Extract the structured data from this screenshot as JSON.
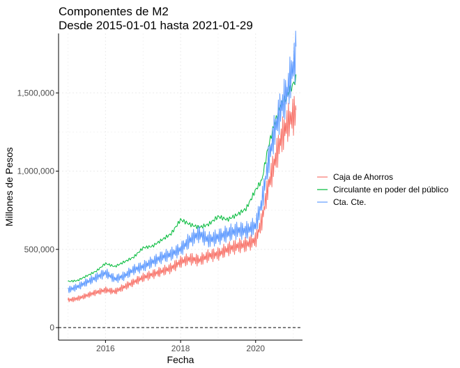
{
  "chart_data": {
    "type": "line",
    "title": "Componentes de M2",
    "subtitle": "Desde 2015-01-01 hasta 2021-01-29",
    "xlabel": "Fecha",
    "ylabel": "Millones de Pesos",
    "x_ticks": [
      "2016",
      "2018",
      "2020"
    ],
    "y_ticks": [
      "0",
      "500,000",
      "1,000,000",
      "1,500,000"
    ],
    "xlim": [
      "2014-10-01",
      "2021-04-01"
    ],
    "ylim": [
      -80000,
      1880000
    ],
    "grid": true,
    "legend_position": "right",
    "reference_line": {
      "y": 0,
      "style": "dashed"
    },
    "series": [
      {
        "name": "Caja de Ahorros",
        "color": "#F8766D",
        "x": [
          "2015-01-01",
          "2015-04-01",
          "2015-07-01",
          "2015-10-01",
          "2016-01-01",
          "2016-04-01",
          "2016-07-01",
          "2016-10-01",
          "2017-01-01",
          "2017-04-01",
          "2017-07-01",
          "2017-10-01",
          "2018-01-01",
          "2018-04-01",
          "2018-07-01",
          "2018-10-01",
          "2019-01-01",
          "2019-04-01",
          "2019-07-01",
          "2019-10-01",
          "2020-01-01",
          "2020-03-01",
          "2020-05-01",
          "2020-07-01",
          "2020-09-01",
          "2020-11-01",
          "2021-01-29"
        ],
        "y": [
          175000,
          185000,
          205000,
          225000,
          240000,
          230000,
          260000,
          290000,
          320000,
          340000,
          360000,
          380000,
          420000,
          440000,
          430000,
          460000,
          470000,
          500000,
          520000,
          530000,
          560000,
          680000,
          900000,
          1050000,
          1200000,
          1300000,
          1380000
        ]
      },
      {
        "name": "Circulante en poder del público",
        "color": "#00BA38",
        "x": [
          "2015-01-01",
          "2015-04-01",
          "2015-07-01",
          "2015-10-01",
          "2016-01-01",
          "2016-04-01",
          "2016-07-01",
          "2016-10-01",
          "2017-01-01",
          "2017-04-01",
          "2017-07-01",
          "2017-10-01",
          "2018-01-01",
          "2018-04-01",
          "2018-07-01",
          "2018-10-01",
          "2019-01-01",
          "2019-04-01",
          "2019-07-01",
          "2019-10-01",
          "2020-01-01",
          "2020-03-01",
          "2020-05-01",
          "2020-07-01",
          "2020-09-01",
          "2020-11-01",
          "2021-01-29"
        ],
        "y": [
          295000,
          300000,
          330000,
          360000,
          410000,
          390000,
          420000,
          450000,
          510000,
          520000,
          560000,
          600000,
          690000,
          660000,
          640000,
          660000,
          710000,
          690000,
          720000,
          760000,
          880000,
          940000,
          1150000,
          1300000,
          1420000,
          1480000,
          1590000
        ]
      },
      {
        "name": "Cta. Cte.",
        "color": "#619CFF",
        "x": [
          "2015-01-01",
          "2015-04-01",
          "2015-07-01",
          "2015-10-01",
          "2016-01-01",
          "2016-04-01",
          "2016-07-01",
          "2016-10-01",
          "2017-01-01",
          "2017-04-01",
          "2017-07-01",
          "2017-10-01",
          "2018-01-01",
          "2018-04-01",
          "2018-07-01",
          "2018-10-01",
          "2019-01-01",
          "2019-04-01",
          "2019-07-01",
          "2019-10-01",
          "2020-01-01",
          "2020-03-01",
          "2020-05-01",
          "2020-07-01",
          "2020-09-01",
          "2020-11-01",
          "2021-01-29"
        ],
        "y": [
          240000,
          260000,
          290000,
          320000,
          350000,
          310000,
          330000,
          370000,
          390000,
          420000,
          450000,
          470000,
          500000,
          560000,
          600000,
          560000,
          580000,
          600000,
          620000,
          620000,
          650000,
          800000,
          1050000,
          1250000,
          1400000,
          1500000,
          1750000
        ]
      }
    ]
  }
}
